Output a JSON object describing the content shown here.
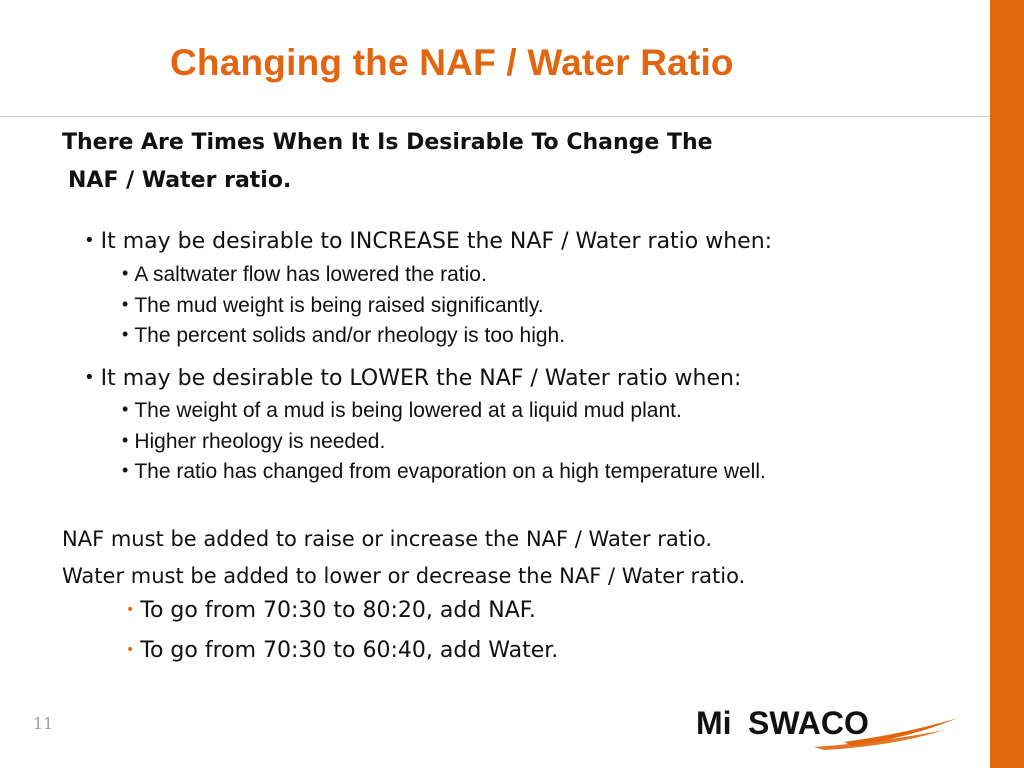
{
  "slide": {
    "title": "Changing the NAF / Water Ratio",
    "heading_line1": "There Are Times When It Is Desirable To Change The",
    "heading_line2": "NAF / Water ratio.",
    "increase": {
      "label": "It may be desirable to INCREASE the NAF / Water ratio when:",
      "items": [
        "A saltwater flow has lowered the ratio.",
        "The mud weight is being raised significantly.",
        "The percent solids and/or rheology is too high."
      ]
    },
    "lower": {
      "label": "It may be desirable to LOWER the NAF / Water ratio when:",
      "items": [
        "The weight of a mud is being lowered at a liquid mud plant.",
        "Higher rheology is needed.",
        "The ratio has changed from evaporation on a high temperature well."
      ]
    },
    "statements": [
      "NAF must be added to raise or increase the NAF / Water ratio.",
      "Water must be added to lower or decrease the NAF / Water ratio."
    ],
    "examples": [
      "To go from 70:30 to 80:20, add NAF.",
      "To go from 70:30 to 60:40, add Water."
    ],
    "page_number": "11",
    "logo_text_mi": "Mi",
    "logo_text_swaco": "SWACO",
    "accent_color": "#e2650f"
  }
}
